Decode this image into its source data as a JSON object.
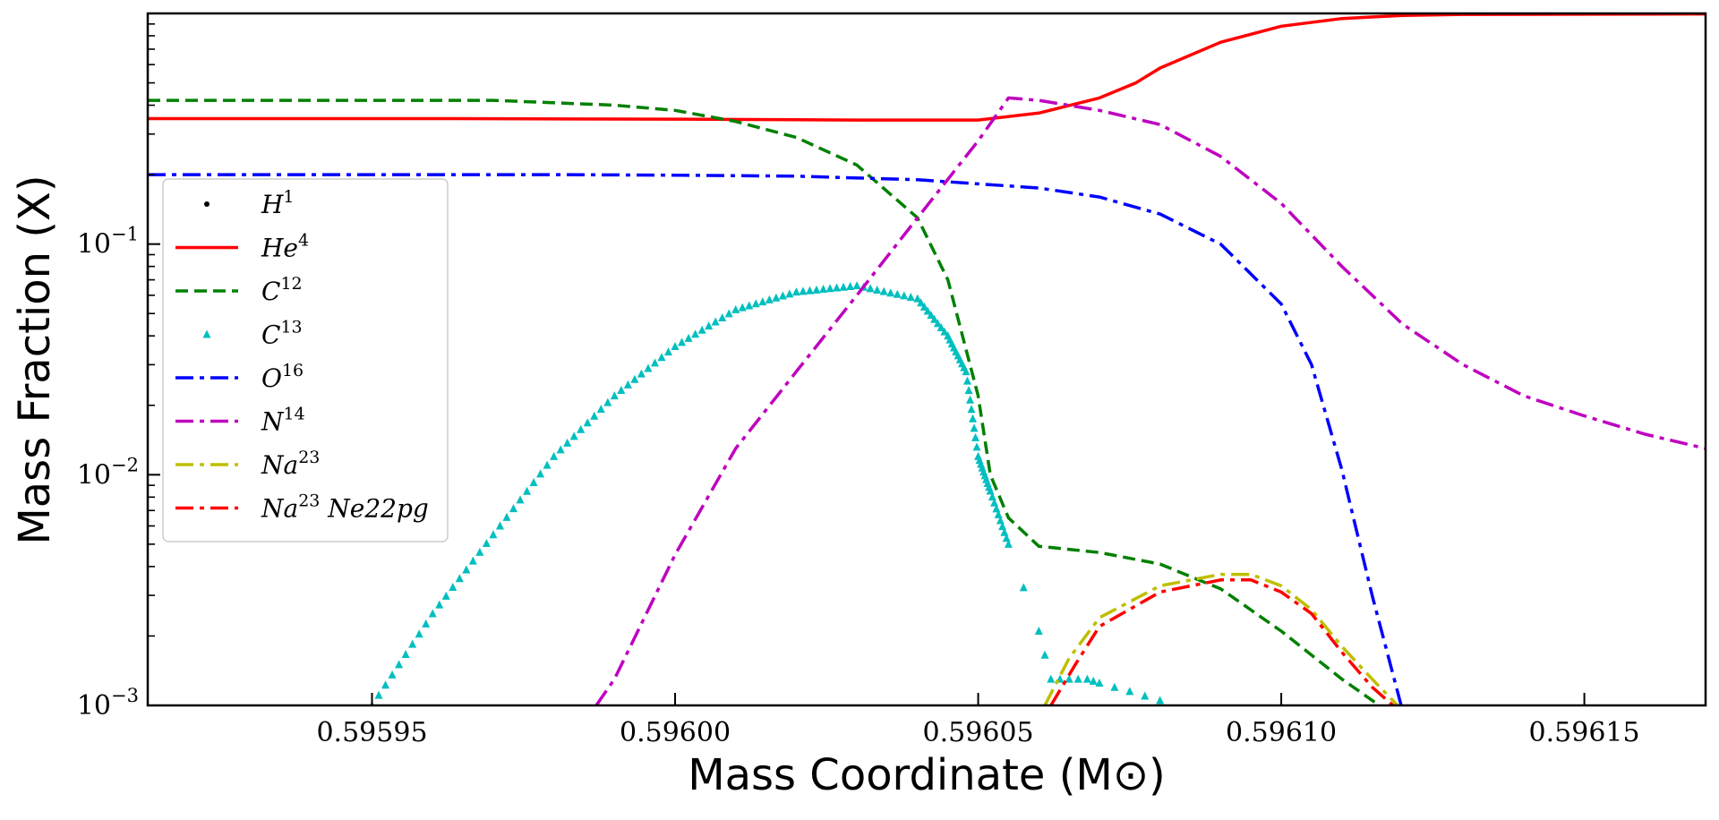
{
  "chart_data": {
    "type": "line",
    "title": "",
    "xlabel": "Mass Coordinate (M⊙)",
    "ylabel": "Mass Fraction (X)",
    "xlim": [
      0.595913,
      0.59617
    ],
    "ylim": [
      0.001,
      1.0
    ],
    "yscale": "log",
    "grid": false,
    "legend_position": "upper-left",
    "x_ticks": [
      0.59595,
      0.596,
      0.59605,
      0.5961,
      0.59615
    ],
    "x_tick_labels": [
      "0.59595",
      "0.59600",
      "0.59605",
      "0.59610",
      "0.59615"
    ],
    "y_ticks": [
      0.001,
      0.01,
      0.1
    ],
    "y_tick_labels": [
      {
        "base": "10",
        "exp": "−3"
      },
      {
        "base": "10",
        "exp": "−2"
      },
      {
        "base": "10",
        "exp": "−1"
      }
    ],
    "series": [
      {
        "name": "H1",
        "label_base": "H",
        "label_sup": "1",
        "color": "#000000",
        "style": "dot",
        "x": [],
        "y": []
      },
      {
        "name": "He4",
        "label_base": "He",
        "label_sup": "4",
        "color": "#ff0000",
        "style": "solid",
        "x": [
          0.595913,
          0.59596,
          0.596,
          0.59603,
          0.59605,
          0.59606,
          0.59607,
          0.596076,
          0.59608,
          0.59609,
          0.5961,
          0.59611,
          0.59612,
          0.59613,
          0.59617
        ],
        "y": [
          0.35,
          0.35,
          0.348,
          0.345,
          0.345,
          0.37,
          0.43,
          0.5,
          0.58,
          0.75,
          0.88,
          0.95,
          0.98,
          0.99,
          0.995
        ]
      },
      {
        "name": "C12",
        "label_base": "C",
        "label_sup": "12",
        "color": "#008000",
        "style": "dashed",
        "x": [
          0.595913,
          0.59597,
          0.59599,
          0.596,
          0.59601,
          0.59602,
          0.59603,
          0.59604,
          0.596045,
          0.59605,
          0.596052,
          0.596055,
          0.59606,
          0.59607,
          0.59608,
          0.59609,
          0.5961,
          0.59611,
          0.59612
        ],
        "y": [
          0.42,
          0.42,
          0.4,
          0.38,
          0.34,
          0.29,
          0.22,
          0.13,
          0.07,
          0.022,
          0.01,
          0.0065,
          0.0049,
          0.0046,
          0.0041,
          0.0032,
          0.0021,
          0.0013,
          0.00085
        ]
      },
      {
        "name": "C13",
        "label_base": "C",
        "label_sup": "13",
        "color": "#00bfbf",
        "style": "triangles",
        "x": [
          0.59595,
          0.59596,
          0.59597,
          0.59598,
          0.59599,
          0.596,
          0.59601,
          0.59602,
          0.59603,
          0.59604,
          0.596045,
          0.596048,
          0.59605,
          0.596052,
          0.596055,
          0.59606,
          0.596062,
          0.596065,
          0.596068,
          0.59607,
          0.596075,
          0.59608
        ],
        "y": [
          0.001,
          0.0025,
          0.0055,
          0.012,
          0.022,
          0.036,
          0.052,
          0.062,
          0.066,
          0.058,
          0.04,
          0.028,
          0.012,
          0.0085,
          0.005,
          0.0021,
          0.0013,
          0.0013,
          0.0013,
          0.00125,
          0.00115,
          0.00105
        ]
      },
      {
        "name": "O16",
        "label_base": "O",
        "label_sup": "16",
        "color": "#0000ff",
        "style": "dashdot",
        "x": [
          0.595913,
          0.59598,
          0.596,
          0.59602,
          0.59604,
          0.59606,
          0.59607,
          0.59608,
          0.59609,
          0.5961,
          0.596105,
          0.59611,
          0.596115,
          0.59612
        ],
        "y": [
          0.2,
          0.2,
          0.199,
          0.197,
          0.19,
          0.175,
          0.16,
          0.135,
          0.1,
          0.055,
          0.03,
          0.0105,
          0.003,
          0.00095
        ]
      },
      {
        "name": "N14",
        "label_base": "N",
        "label_sup": "14",
        "color": "#bf00bf",
        "style": "dashdot",
        "x": [
          0.595987,
          0.59599,
          0.596,
          0.59601,
          0.59602,
          0.59603,
          0.59604,
          0.59605,
          0.596055,
          0.59606,
          0.59607,
          0.59608,
          0.59609,
          0.5961,
          0.59611,
          0.59612,
          0.59613,
          0.59614,
          0.59615,
          0.59616,
          0.59617
        ],
        "y": [
          0.001,
          0.0013,
          0.0045,
          0.013,
          0.028,
          0.06,
          0.13,
          0.28,
          0.43,
          0.42,
          0.38,
          0.33,
          0.24,
          0.15,
          0.08,
          0.045,
          0.03,
          0.022,
          0.018,
          0.015,
          0.013
        ]
      },
      {
        "name": "Na23",
        "label_base": "Na",
        "label_sup": "23",
        "color": "#bfbf00",
        "style": "dashdot",
        "x": [
          0.596061,
          0.596065,
          0.59607,
          0.59608,
          0.59609,
          0.596095,
          0.5961,
          0.596105,
          0.59611,
          0.596115,
          0.59612
        ],
        "y": [
          0.001,
          0.0016,
          0.0024,
          0.0033,
          0.0037,
          0.0037,
          0.0033,
          0.0026,
          0.0018,
          0.0013,
          0.00095
        ]
      },
      {
        "name": "Na23 Ne22pg",
        "label_base": "Na",
        "label_sup": "23",
        "label_suffix": " Ne22pg",
        "color": "#ff0000",
        "style": "dashdot",
        "x": [
          0.596062,
          0.596066,
          0.59607,
          0.59608,
          0.59609,
          0.596095,
          0.5961,
          0.596105,
          0.59611,
          0.596115,
          0.59612
        ],
        "y": [
          0.001,
          0.0015,
          0.0022,
          0.0031,
          0.0035,
          0.0035,
          0.0031,
          0.0025,
          0.0017,
          0.0012,
          0.00092
        ]
      }
    ]
  }
}
